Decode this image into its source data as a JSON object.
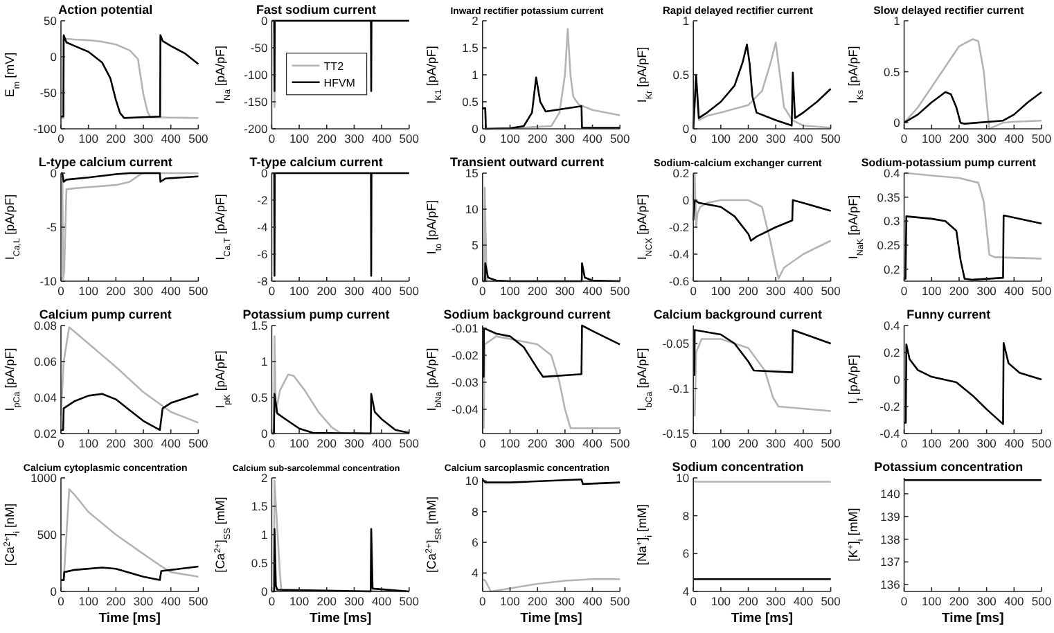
{
  "chart_data": [
    {
      "type": "line",
      "title": "Action potential",
      "ylabel": "E$_{m}$ [mV]",
      "xlim": [
        0,
        500
      ],
      "xticks": [
        0,
        100,
        200,
        300,
        400,
        500
      ],
      "ylim": [
        -100,
        50
      ],
      "yticks": [
        -100,
        -50,
        0,
        50
      ],
      "series": [
        {
          "color": "#b4b4b4",
          "x": [
            0,
            9,
            10,
            20,
            50,
            100,
            150,
            200,
            250,
            280,
            300,
            315,
            325,
            500
          ],
          "values": [
            -85,
            -85,
            25,
            25,
            24,
            23,
            21,
            17,
            9,
            -3,
            -52,
            -76,
            -84,
            -85
          ]
        },
        {
          "color": "#000000",
          "x": [
            0,
            9,
            10,
            20,
            50,
            100,
            150,
            180,
            200,
            215,
            230,
            360,
            361,
            362,
            370,
            400,
            450,
            500
          ],
          "values": [
            -83,
            -83,
            30,
            20,
            15,
            7,
            -8,
            -30,
            -60,
            -78,
            -85,
            -83,
            -83,
            30,
            22,
            15,
            5,
            -10
          ]
        }
      ]
    },
    {
      "type": "line",
      "title": "Fast sodium current",
      "ylabel": "I$_{Na}$ [pA/pF]",
      "xlim": [
        0,
        500
      ],
      "xticks": [
        0,
        100,
        200,
        300,
        400,
        500
      ],
      "ylim": [
        -200,
        0
      ],
      "yticks": [
        -200,
        -150,
        -100,
        -50,
        0
      ],
      "legend": "top",
      "series": [
        {
          "name": "TT2",
          "color": "#b4b4b4",
          "x": [
            0,
            9,
            10,
            11,
            500
          ],
          "values": [
            0,
            0,
            -160,
            0,
            0
          ]
        },
        {
          "name": "HFVM",
          "color": "#000000",
          "x": [
            0,
            9,
            10,
            11,
            361,
            362,
            363,
            500
          ],
          "values": [
            0,
            0,
            -130,
            0,
            0,
            -130,
            0,
            0
          ]
        }
      ]
    },
    {
      "type": "line",
      "title": "Inward rectifier potassium current",
      "ylabel": "I$_{K1}$ [pA/pF]",
      "xlim": [
        0,
        500
      ],
      "xticks": [
        0,
        100,
        200,
        300,
        400,
        500
      ],
      "ylim": [
        0,
        2
      ],
      "yticks": [
        0,
        0.5,
        1,
        1.5,
        2
      ],
      "series": [
        {
          "color": "#b4b4b4",
          "x": [
            0,
            10,
            12,
            100,
            250,
            280,
            300,
            310,
            320,
            330,
            350,
            400,
            500
          ],
          "values": [
            0.38,
            0.38,
            0,
            0.01,
            0.05,
            0.3,
            1,
            1.85,
            1,
            0.6,
            0.45,
            0.35,
            0.25
          ]
        },
        {
          "color": "#000000",
          "x": [
            0,
            10,
            12,
            100,
            150,
            180,
            195,
            210,
            230,
            360,
            362,
            500
          ],
          "values": [
            0.38,
            0.38,
            0,
            0.01,
            0.05,
            0.3,
            0.95,
            0.5,
            0.32,
            0.42,
            0.02,
            0.02
          ]
        }
      ]
    },
    {
      "type": "line",
      "title": "Rapid delayed rectifier current",
      "ylabel": "I$_{Kr}$ [pA/pF]",
      "xlim": [
        0,
        500
      ],
      "xticks": [
        0,
        100,
        200,
        300,
        400,
        500
      ],
      "ylim": [
        0,
        1
      ],
      "yticks": [
        0,
        0.5,
        1
      ],
      "series": [
        {
          "color": "#b4b4b4",
          "x": [
            0,
            10,
            20,
            50,
            100,
            200,
            250,
            280,
            300,
            310,
            330,
            360,
            400,
            500
          ],
          "values": [
            0,
            0.45,
            0.08,
            0.12,
            0.15,
            0.22,
            0.35,
            0.6,
            0.8,
            0.6,
            0.2,
            0.08,
            0.03,
            0.01
          ]
        },
        {
          "color": "#000000",
          "x": [
            0,
            10,
            20,
            50,
            100,
            150,
            180,
            195,
            205,
            215,
            230,
            300,
            358,
            362,
            370,
            400,
            450,
            500
          ],
          "values": [
            0,
            0.5,
            0.1,
            0.15,
            0.25,
            0.4,
            0.62,
            0.78,
            0.6,
            0.3,
            0.15,
            0.08,
            0.03,
            0.52,
            0.1,
            0.15,
            0.25,
            0.37
          ]
        }
      ]
    },
    {
      "type": "line",
      "title": "Slow delayed rectifier current",
      "ylabel": "I$_{Ks}$ [pA/pF]",
      "xlim": [
        0,
        500
      ],
      "xticks": [
        0,
        100,
        200,
        300,
        400,
        500
      ],
      "ylim": [
        -0.06,
        1
      ],
      "yticks": [
        0,
        0.5,
        1
      ],
      "series": [
        {
          "color": "#b4b4b4",
          "x": [
            0,
            50,
            100,
            150,
            200,
            250,
            270,
            290,
            300,
            310,
            360,
            400,
            500
          ],
          "values": [
            0,
            0.15,
            0.35,
            0.55,
            0.75,
            0.82,
            0.8,
            0.5,
            0.2,
            -0.06,
            0,
            0.01,
            0.02
          ]
        },
        {
          "color": "#000000",
          "x": [
            0,
            50,
            100,
            150,
            170,
            190,
            205,
            220,
            360,
            400,
            450,
            500
          ],
          "values": [
            0,
            0.08,
            0.2,
            0.3,
            0.28,
            0.15,
            0,
            -0.01,
            0.02,
            0.08,
            0.2,
            0.3
          ]
        }
      ]
    },
    {
      "type": "line",
      "title": "L-type calcium current",
      "ylabel": "I$_{Ca,L}$ [pA/pF]",
      "xlim": [
        0,
        500
      ],
      "xticks": [
        0,
        100,
        200,
        300,
        400,
        500
      ],
      "ylim": [
        -10,
        0
      ],
      "yticks": [
        -10,
        -5,
        0
      ],
      "series": [
        {
          "color": "#b4b4b4",
          "x": [
            0,
            5,
            8,
            12,
            20,
            50,
            100,
            200,
            250,
            290,
            300,
            500
          ],
          "values": [
            0,
            0,
            -9.8,
            -9,
            -1.5,
            -1.4,
            -1.3,
            -1.1,
            -0.8,
            -0.1,
            0,
            0
          ]
        },
        {
          "color": "#000000",
          "x": [
            0,
            5,
            10,
            20,
            100,
            200,
            250,
            360,
            362,
            380,
            500
          ],
          "values": [
            0,
            0,
            -0.8,
            -0.6,
            -0.4,
            -0.1,
            0,
            0,
            -0.8,
            -0.5,
            -0.3
          ]
        }
      ]
    },
    {
      "type": "line",
      "title": "T-type calcium current",
      "ylabel": "I$_{Ca,T}$ [pA/pF]",
      "xlim": [
        0,
        500
      ],
      "xticks": [
        0,
        100,
        200,
        300,
        400,
        500
      ],
      "ylim": [
        -8,
        0
      ],
      "yticks": [
        -8,
        -6,
        -4,
        -2,
        0
      ],
      "series": [
        {
          "color": "#000000",
          "x": [
            0,
            9,
            10,
            11,
            361,
            362,
            363,
            500
          ],
          "values": [
            0,
            0,
            -7.6,
            0,
            0,
            -7.6,
            0,
            0
          ]
        }
      ]
    },
    {
      "type": "line",
      "title": "Transient outward current",
      "ylabel": "I$_{to}$ [pA/pF]",
      "xlim": [
        0,
        500
      ],
      "xticks": [
        0,
        100,
        200,
        300,
        400,
        500
      ],
      "ylim": [
        0,
        15
      ],
      "yticks": [
        0,
        5,
        10,
        15
      ],
      "series": [
        {
          "color": "#b4b4b4",
          "x": [
            0,
            6,
            8,
            15,
            500
          ],
          "values": [
            0,
            0,
            13,
            0,
            0
          ]
        },
        {
          "color": "#000000",
          "x": [
            0,
            9,
            10,
            20,
            50,
            100,
            361,
            362,
            372,
            400,
            500
          ],
          "values": [
            0,
            0,
            2.5,
            0.5,
            0.1,
            0,
            0,
            2.5,
            0.5,
            0.1,
            0
          ]
        }
      ]
    },
    {
      "type": "line",
      "title": "Sodium-calcium exchanger current",
      "ylabel": "I$_{NCX}$ [pA/pF]",
      "xlim": [
        0,
        500
      ],
      "xticks": [
        0,
        100,
        200,
        300,
        400,
        500
      ],
      "ylim": [
        -0.6,
        0.2
      ],
      "yticks": [
        -0.6,
        -0.4,
        -0.2,
        0,
        0.2
      ],
      "series": [
        {
          "color": "#b4b4b4",
          "x": [
            0,
            5,
            10,
            15,
            25,
            50,
            100,
            200,
            250,
            280,
            300,
            310,
            330,
            400,
            500
          ],
          "values": [
            0,
            0.2,
            -0.2,
            -0.1,
            -0.05,
            -0.02,
            0,
            0,
            -0.05,
            -0.3,
            -0.5,
            -0.58,
            -0.5,
            -0.4,
            -0.3
          ]
        },
        {
          "color": "#000000",
          "x": [
            0,
            5,
            20,
            100,
            150,
            200,
            210,
            230,
            300,
            360,
            362,
            400,
            450,
            500
          ],
          "values": [
            -0.15,
            0,
            -0.02,
            -0.05,
            -0.12,
            -0.25,
            -0.3,
            -0.27,
            -0.2,
            -0.15,
            0,
            -0.02,
            -0.05,
            -0.08
          ]
        }
      ]
    },
    {
      "type": "line",
      "title": "Sodium-potassium pump current",
      "ylabel": "I$_{NaK}$ [pA/pF]",
      "xlim": [
        0,
        500
      ],
      "xticks": [
        0,
        100,
        200,
        300,
        400,
        500
      ],
      "ylim": [
        0.175,
        0.4
      ],
      "yticks": [
        0.2,
        0.25,
        0.3,
        0.35,
        0.4
      ],
      "series": [
        {
          "color": "#b4b4b4",
          "x": [
            0,
            10,
            100,
            200,
            270,
            290,
            310,
            330,
            500
          ],
          "values": [
            0.4,
            0.4,
            0.395,
            0.39,
            0.38,
            0.34,
            0.23,
            0.225,
            0.222
          ]
        },
        {
          "color": "#000000",
          "x": [
            0,
            5,
            8,
            100,
            150,
            190,
            205,
            220,
            250,
            360,
            362,
            500
          ],
          "values": [
            0.18,
            0.18,
            0.31,
            0.305,
            0.3,
            0.28,
            0.22,
            0.18,
            0.178,
            0.182,
            0.312,
            0.295
          ]
        }
      ]
    },
    {
      "type": "line",
      "title": "Calcium pump current",
      "ylabel": "I$_{pCa}$ [pA/pF]",
      "xlim": [
        0,
        500
      ],
      "xticks": [
        0,
        100,
        200,
        300,
        400,
        500
      ],
      "ylim": [
        0.02,
        0.08
      ],
      "yticks": [
        0.02,
        0.04,
        0.06,
        0.08
      ],
      "series": [
        {
          "color": "#b4b4b4",
          "x": [
            0,
            10,
            30,
            100,
            200,
            300,
            400,
            500
          ],
          "values": [
            0.03,
            0.06,
            0.079,
            0.07,
            0.057,
            0.043,
            0.032,
            0.026
          ]
        },
        {
          "color": "#000000",
          "x": [
            0,
            8,
            10,
            50,
            100,
            150,
            200,
            250,
            300,
            360,
            370,
            400,
            500
          ],
          "values": [
            0.022,
            0.022,
            0.034,
            0.038,
            0.041,
            0.042,
            0.039,
            0.033,
            0.027,
            0.022,
            0.034,
            0.037,
            0.042
          ]
        }
      ]
    },
    {
      "type": "line",
      "title": "Potassium pump current",
      "ylabel": "I$_{pK}$ [pA/pF]",
      "xlim": [
        0,
        500
      ],
      "xticks": [
        0,
        100,
        200,
        300,
        400,
        500
      ],
      "ylim": [
        0,
        1.5
      ],
      "yticks": [
        0,
        0.5,
        1,
        1.5
      ],
      "series": [
        {
          "color": "#b4b4b4",
          "x": [
            0,
            8,
            10,
            15,
            30,
            60,
            80,
            120,
            170,
            220,
            250,
            500
          ],
          "values": [
            0,
            0,
            1.35,
            0.3,
            0.6,
            0.82,
            0.8,
            0.6,
            0.3,
            0.08,
            0.01,
            0
          ]
        },
        {
          "color": "#000000",
          "x": [
            0,
            8,
            10,
            20,
            50,
            100,
            150,
            360,
            362,
            375,
            400,
            450,
            500
          ],
          "values": [
            0,
            0,
            0.55,
            0.28,
            0.2,
            0.07,
            0.01,
            0,
            0.55,
            0.3,
            0.2,
            0.05,
            0.01
          ]
        }
      ]
    },
    {
      "type": "line",
      "title": "Sodium background current",
      "ylabel": "I$_{bNa}$ [pA/pF]",
      "xlim": [
        0,
        500
      ],
      "xticks": [
        0,
        100,
        200,
        300,
        400,
        500
      ],
      "ylim": [
        -0.049,
        -0.009
      ],
      "yticks": [
        -0.04,
        -0.03,
        -0.02,
        -0.01
      ],
      "series": [
        {
          "color": "#b4b4b4",
          "x": [
            0,
            4,
            8,
            50,
            100,
            200,
            250,
            280,
            300,
            320,
            500
          ],
          "values": [
            -0.047,
            -0.047,
            -0.016,
            -0.013,
            -0.014,
            -0.016,
            -0.02,
            -0.03,
            -0.04,
            -0.047,
            -0.047
          ]
        },
        {
          "color": "#000000",
          "x": [
            0,
            4,
            5,
            50,
            100,
            150,
            200,
            220,
            360,
            362,
            400,
            500
          ],
          "values": [
            -0.028,
            -0.028,
            -0.01,
            -0.012,
            -0.013,
            -0.017,
            -0.025,
            -0.028,
            -0.027,
            -0.009,
            -0.011,
            -0.016
          ]
        }
      ]
    },
    {
      "type": "line",
      "title": "Calcium background current",
      "ylabel": "I$_{bCa}$ [pA/pF]",
      "xlim": [
        0,
        500
      ],
      "xticks": [
        0,
        100,
        200,
        300,
        400,
        500
      ],
      "ylim": [
        -0.15,
        -0.03
      ],
      "yticks": [
        -0.15,
        -0.1,
        -0.05
      ],
      "series": [
        {
          "color": "#b4b4b4",
          "x": [
            0,
            5,
            10,
            30,
            100,
            200,
            260,
            290,
            310,
            500
          ],
          "values": [
            -0.13,
            -0.13,
            -0.06,
            -0.045,
            -0.045,
            -0.055,
            -0.08,
            -0.11,
            -0.12,
            -0.125
          ]
        },
        {
          "color": "#000000",
          "x": [
            0,
            4,
            5,
            100,
            150,
            200,
            220,
            360,
            362,
            500
          ],
          "values": [
            -0.085,
            -0.085,
            -0.035,
            -0.04,
            -0.05,
            -0.07,
            -0.08,
            -0.082,
            -0.035,
            -0.05
          ]
        }
      ]
    },
    {
      "type": "line",
      "title": "Funny current",
      "ylabel": "I$_{f}$ [pA/pF]",
      "xlim": [
        0,
        500
      ],
      "xticks": [
        0,
        100,
        200,
        300,
        400,
        500
      ],
      "ylim": [
        -0.4,
        0.4
      ],
      "yticks": [
        -0.4,
        -0.2,
        0,
        0.2,
        0.4
      ],
      "series": [
        {
          "color": "#000000",
          "x": [
            0,
            6,
            8,
            20,
            50,
            100,
            190,
            250,
            300,
            360,
            362,
            380,
            420,
            500
          ],
          "values": [
            -0.32,
            -0.32,
            0.26,
            0.15,
            0.07,
            0.02,
            -0.02,
            -0.12,
            -0.22,
            -0.33,
            0.27,
            0.12,
            0.05,
            0
          ]
        }
      ]
    },
    {
      "type": "line",
      "title": "Calcium cytoplasmic concentration",
      "ylabel": "[Ca$^{2+}$]$_{i}$ [nM]",
      "xlabel": "Time [ms]",
      "xlim": [
        0,
        500
      ],
      "xticks": [
        0,
        100,
        200,
        300,
        400,
        500
      ],
      "ylim": [
        0,
        1000
      ],
      "yticks": [
        0,
        500,
        1000
      ],
      "series": [
        {
          "color": "#b4b4b4",
          "x": [
            0,
            10,
            30,
            50,
            100,
            200,
            300,
            360,
            400,
            500
          ],
          "values": [
            100,
            100,
            900,
            850,
            700,
            500,
            330,
            230,
            170,
            130
          ]
        },
        {
          "color": "#000000",
          "x": [
            0,
            10,
            12,
            50,
            150,
            200,
            300,
            360,
            365,
            400,
            500
          ],
          "values": [
            100,
            100,
            170,
            190,
            210,
            200,
            130,
            100,
            180,
            190,
            220
          ]
        }
      ]
    },
    {
      "type": "line",
      "title": "Calcium sub-sarcolemmal concentration",
      "ylabel": "[Ca$^{2+}$]$_{SS}$ [mM]",
      "xlabel": "Time [ms]",
      "xlim": [
        0,
        500
      ],
      "xticks": [
        0,
        100,
        200,
        300,
        400,
        500
      ],
      "ylim": [
        0,
        2
      ],
      "yticks": [
        0,
        0.5,
        1,
        1.5,
        2
      ],
      "series": [
        {
          "color": "#b4b4b4",
          "x": [
            0,
            8,
            10,
            30,
            35,
            500
          ],
          "values": [
            0,
            0,
            1.95,
            0.3,
            0.02,
            0
          ]
        },
        {
          "color": "#000000",
          "x": [
            0,
            9,
            10,
            15,
            20,
            360,
            362,
            367,
            500
          ],
          "values": [
            0,
            0,
            1.1,
            0.1,
            0.03,
            0,
            1.1,
            0.05,
            0
          ]
        }
      ]
    },
    {
      "type": "line",
      "title": "Calcium sarcoplasmic concentration",
      "ylabel": "[Ca$^{2+}$]$_{SR}$ [mM]",
      "xlabel": "Time [ms]",
      "xlim": [
        0,
        500
      ],
      "xticks": [
        0,
        100,
        200,
        300,
        400,
        500
      ],
      "ylim": [
        2.8,
        10.2
      ],
      "yticks": [
        4,
        6,
        8,
        10
      ],
      "series": [
        {
          "color": "#b4b4b4",
          "x": [
            0,
            10,
            30,
            100,
            200,
            300,
            400,
            500
          ],
          "values": [
            3.6,
            3.5,
            2.8,
            3,
            3.3,
            3.5,
            3.6,
            3.6
          ]
        },
        {
          "color": "#000000",
          "x": [
            0,
            10,
            100,
            360,
            365,
            500
          ],
          "values": [
            10.1,
            9.9,
            9.9,
            10.1,
            9.8,
            9.9
          ]
        }
      ]
    },
    {
      "type": "line",
      "title": "Sodium concentration",
      "ylabel": "[Na$^{+}$]$_{i}$ [mM]",
      "xlabel": "Time [ms]",
      "xlim": [
        0,
        500
      ],
      "xticks": [
        0,
        100,
        200,
        300,
        400,
        500
      ],
      "ylim": [
        4,
        10
      ],
      "yticks": [
        4,
        6,
        8,
        10
      ],
      "series": [
        {
          "color": "#b4b4b4",
          "x": [
            0,
            500
          ],
          "values": [
            9.8,
            9.8
          ]
        },
        {
          "color": "#000000",
          "x": [
            0,
            500
          ],
          "values": [
            4.65,
            4.65
          ]
        }
      ]
    },
    {
      "type": "line",
      "title": "Potassium concentration",
      "ylabel": "[K$^{+}$]$_{i}$ [mM]",
      "xlabel": "Time [ms]",
      "xlim": [
        0,
        500
      ],
      "xticks": [
        0,
        100,
        200,
        300,
        400,
        500
      ],
      "ylim": [
        135.7,
        140.7
      ],
      "yticks": [
        136,
        137,
        138,
        139,
        140
      ],
      "series": [
        {
          "color": "#000000",
          "x": [
            0,
            500
          ],
          "values": [
            140.6,
            140.6
          ]
        }
      ]
    }
  ]
}
